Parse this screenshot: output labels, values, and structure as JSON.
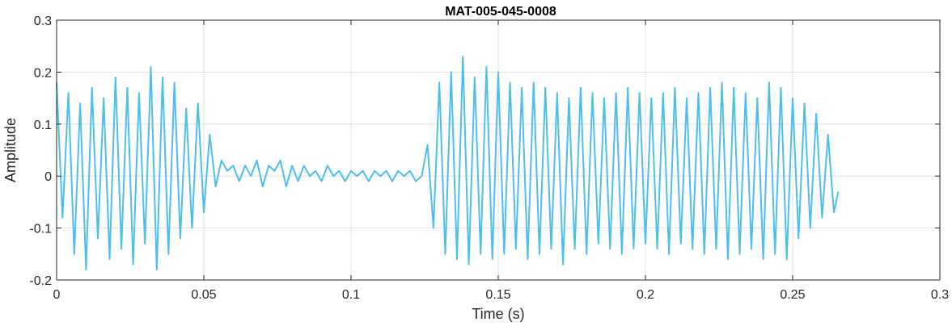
{
  "chart_data": {
    "type": "line",
    "title": "MAT-005-045-0008",
    "xlabel": "Time (s)",
    "ylabel": "Amplitude",
    "xlim": [
      0,
      0.3
    ],
    "ylim": [
      -0.2,
      0.3
    ],
    "xticks": [
      0,
      0.05,
      0.1,
      0.15,
      0.2,
      0.25,
      0.3
    ],
    "xtick_labels": [
      "0",
      "0.05",
      "0.1",
      "0.15",
      "0.2",
      "0.25",
      "0.3"
    ],
    "yticks": [
      -0.2,
      -0.1,
      0,
      0.1,
      0.2,
      0.3
    ],
    "ytick_labels": [
      "-0.2",
      "-0.1",
      "0",
      "0.1",
      "0.2",
      "0.3"
    ],
    "grid": true,
    "legend": "none",
    "line_color": "#4DBEEE",
    "series": [
      {
        "x": [
          0,
          0.002,
          0.004,
          0.006,
          0.008,
          0.01,
          0.012,
          0.014,
          0.016,
          0.018,
          0.02,
          0.022,
          0.024,
          0.026,
          0.028,
          0.03,
          0.032,
          0.034,
          0.036,
          0.038,
          0.04,
          0.042,
          0.044,
          0.046,
          0.048,
          0.05,
          0.052,
          0.054,
          0.056,
          0.058,
          0.06,
          0.062,
          0.064,
          0.066,
          0.068,
          0.07,
          0.072,
          0.074,
          0.076,
          0.078,
          0.08,
          0.082,
          0.084,
          0.086,
          0.088,
          0.09,
          0.092,
          0.094,
          0.096,
          0.098,
          0.1,
          0.102,
          0.104,
          0.106,
          0.108,
          0.11,
          0.112,
          0.114,
          0.116,
          0.118,
          0.12,
          0.122,
          0.124,
          0.126,
          0.128,
          0.13,
          0.132,
          0.134,
          0.136,
          0.138,
          0.14,
          0.142,
          0.144,
          0.146,
          0.148,
          0.15,
          0.152,
          0.154,
          0.156,
          0.158,
          0.16,
          0.162,
          0.164,
          0.166,
          0.168,
          0.17,
          0.172,
          0.174,
          0.176,
          0.178,
          0.18,
          0.182,
          0.184,
          0.186,
          0.188,
          0.19,
          0.192,
          0.194,
          0.196,
          0.198,
          0.2,
          0.202,
          0.204,
          0.206,
          0.208,
          0.21,
          0.212,
          0.214,
          0.216,
          0.218,
          0.22,
          0.222,
          0.224,
          0.226,
          0.228,
          0.23,
          0.232,
          0.234,
          0.236,
          0.238,
          0.24,
          0.242,
          0.244,
          0.246,
          0.248,
          0.25,
          0.252,
          0.254,
          0.256,
          0.258,
          0.26,
          0.262,
          0.264,
          0.2655
        ],
        "y": [
          0.18,
          -0.08,
          0.16,
          -0.15,
          0.14,
          -0.18,
          0.17,
          -0.12,
          0.15,
          -0.16,
          0.19,
          -0.14,
          0.17,
          -0.17,
          0.16,
          -0.13,
          0.21,
          -0.18,
          0.19,
          -0.15,
          0.18,
          -0.12,
          0.13,
          -0.1,
          0.14,
          -0.07,
          0.08,
          -0.02,
          0.03,
          0.01,
          0.02,
          -0.01,
          0.02,
          0.0,
          0.03,
          -0.02,
          0.02,
          0.01,
          0.03,
          -0.02,
          0.02,
          -0.01,
          0.02,
          0.0,
          0.01,
          -0.01,
          0.02,
          0.0,
          0.01,
          -0.01,
          0.01,
          0.0,
          0.01,
          -0.01,
          0.01,
          0.0,
          0.01,
          -0.01,
          0.01,
          0.0,
          0.01,
          -0.01,
          0.0,
          0.06,
          -0.1,
          0.18,
          -0.15,
          0.2,
          -0.16,
          0.23,
          -0.17,
          0.19,
          -0.15,
          0.21,
          -0.16,
          0.2,
          -0.15,
          0.18,
          -0.14,
          0.17,
          -0.16,
          0.18,
          -0.15,
          0.17,
          -0.14,
          0.16,
          -0.17,
          0.15,
          -0.14,
          0.17,
          -0.15,
          0.16,
          -0.13,
          0.15,
          -0.14,
          0.16,
          -0.15,
          0.17,
          -0.14,
          0.16,
          -0.13,
          0.15,
          -0.14,
          0.16,
          -0.15,
          0.17,
          -0.13,
          0.15,
          -0.14,
          0.16,
          -0.15,
          0.17,
          -0.14,
          0.18,
          -0.16,
          0.17,
          -0.15,
          0.16,
          -0.14,
          0.15,
          -0.16,
          0.18,
          -0.15,
          0.17,
          -0.16,
          0.15,
          -0.12,
          0.14,
          -0.1,
          0.12,
          -0.08,
          0.08,
          -0.07,
          -0.03
        ]
      }
    ]
  }
}
